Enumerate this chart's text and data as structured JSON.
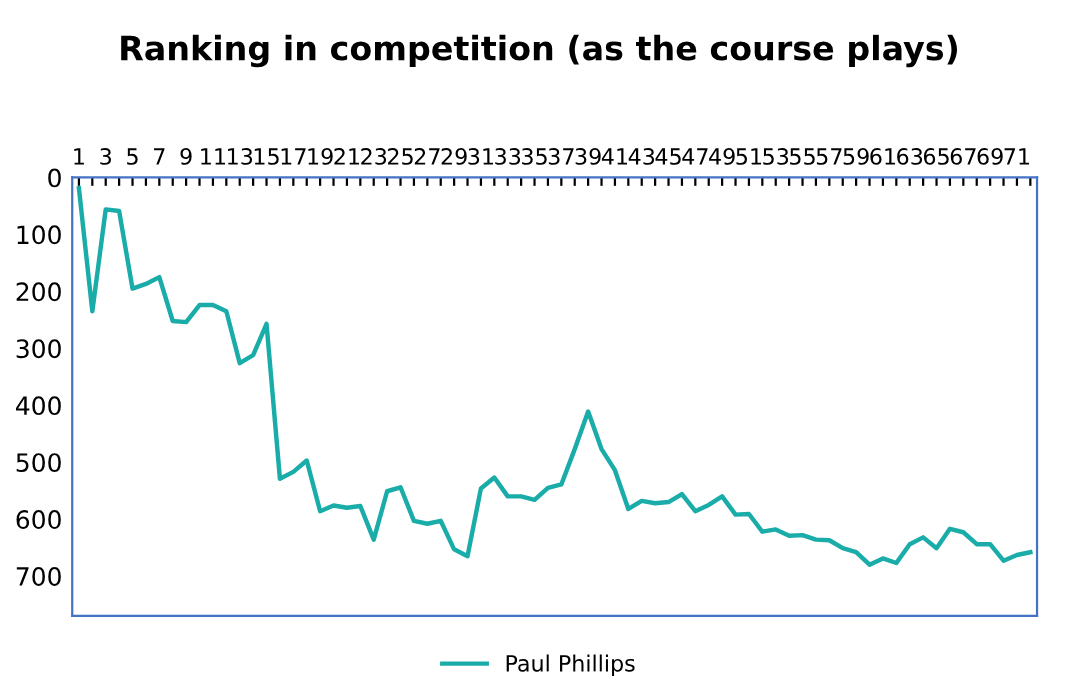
{
  "chart_data": {
    "type": "line",
    "title": "Ranking in competition (as the course plays)",
    "categories": [
      "1",
      null,
      "3",
      null,
      "5",
      null,
      "7",
      null,
      "9",
      null,
      "11",
      null,
      "13",
      null,
      "15",
      null,
      "17",
      null,
      "19",
      null,
      "21",
      null,
      "23",
      null,
      "25",
      null,
      "27",
      null,
      "29",
      null,
      "31",
      null,
      "33",
      null,
      "35",
      null,
      "37",
      null,
      "39",
      null,
      "41",
      null,
      "43",
      null,
      "45",
      null,
      "47",
      null,
      "49",
      null,
      "51",
      null,
      "53",
      null,
      "55",
      null,
      "57",
      null,
      "59",
      null,
      "61",
      null,
      "63",
      null,
      "65",
      null,
      "67",
      null,
      "69",
      null,
      "71",
      null
    ],
    "series": [
      {
        "name": "Paul Phillips",
        "color": "#1aaca8",
        "values": [
          19,
          235,
          56,
          59,
          195,
          187,
          175,
          252,
          254,
          224,
          224,
          235,
          326,
          312,
          257,
          529,
          517,
          497,
          586,
          576,
          580,
          577,
          636,
          551,
          544,
          603,
          608,
          603,
          653,
          665,
          546,
          527,
          560,
          560,
          566,
          545,
          539,
          477,
          411,
          477,
          514,
          582,
          568,
          572,
          570,
          556,
          586,
          575,
          560,
          592,
          591,
          622,
          618,
          629,
          628,
          636,
          637,
          651,
          658,
          680,
          669,
          677,
          644,
          632,
          651,
          617,
          623,
          644,
          644,
          673,
          663,
          658
        ]
      }
    ],
    "ylim": [
      770,
      0
    ],
    "yticks": [
      0,
      100,
      200,
      300,
      400,
      500,
      600,
      700
    ],
    "grid": false,
    "legend": "bottom",
    "marker": "none",
    "line_style": "solid"
  }
}
